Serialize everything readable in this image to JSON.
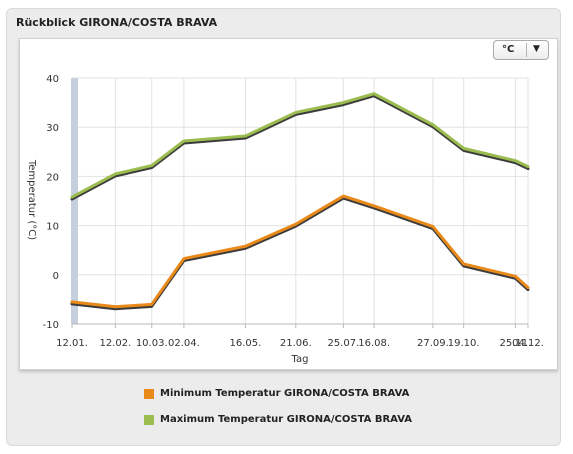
{
  "header": {
    "title": "Rückblick GIRONA/COSTA BRAVA"
  },
  "unit_select": {
    "value": "°C"
  },
  "colors": {
    "min": "#e8891a",
    "max": "#9bbc4e",
    "shadow": "#3c3c3c",
    "grid": "#e2e2e2",
    "axis_band": "#c5d0dc"
  },
  "chart_data": {
    "type": "line",
    "xlabel": "Tag",
    "ylabel": "Temperatur (°C)",
    "ylim": [
      -10,
      40
    ],
    "yticks": [
      40,
      30,
      20,
      10,
      0,
      -10
    ],
    "categories": [
      "12.01.",
      "12.02.",
      "10.03.",
      "02.04.",
      "16.05.",
      "21.06.",
      "25.07.",
      "16.08.",
      "27.09.",
      "19.10.",
      "25.11.",
      "04.12."
    ],
    "x_days": [
      12,
      43,
      69,
      92,
      136,
      172,
      206,
      228,
      270,
      292,
      329,
      338
    ],
    "series": [
      {
        "name": "Minimum Temperatur GIRONA/COSTA BRAVA",
        "color": "#e8891a",
        "values": [
          -5.5,
          -6.5,
          -6,
          3.3,
          5.8,
          10.3,
          16,
          14,
          9.8,
          2.2,
          -0.3,
          -2.6
        ]
      },
      {
        "name": "Maximum Temperatur GIRONA/COSTA BRAVA",
        "color": "#9bbc4e",
        "values": [
          15.8,
          20.5,
          22.2,
          27.2,
          28.2,
          33,
          35,
          36.8,
          30.5,
          25.7,
          23.2,
          22
        ]
      }
    ],
    "grid": true,
    "legend_position": "bottom"
  }
}
